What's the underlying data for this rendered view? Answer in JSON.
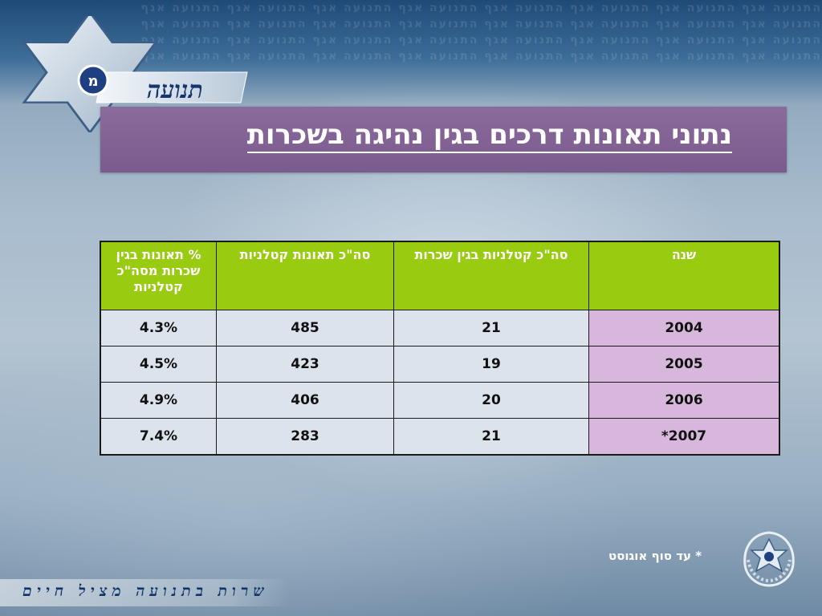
{
  "header": {
    "logo_text": "תנועה",
    "pattern_text": "התנועה אגף התנועה אגף התנועה אגף התנועה אגף התנועה אגף התנועה אגף התנועה אגף התנועה אגף"
  },
  "title": "נתוני תאונות דרכים בגין נהיגה בשכרות",
  "table": {
    "headers": [
      "שנה",
      "סה\"כ קטלניות בגין שכרות",
      "סה\"כ תאונות קטלניות",
      "% תאונות בגין שכרות מסה\"כ קטלניות"
    ],
    "rows": [
      [
        "2004",
        "21",
        "485",
        "4.3%"
      ],
      [
        "2005",
        "19",
        "423",
        "4.5%"
      ],
      [
        "2006",
        "20",
        "406",
        "4.9%"
      ],
      [
        "2007*",
        "21",
        "283",
        "7.4%"
      ]
    ]
  },
  "footnote": "* עד סוף אוגוסט",
  "footer": {
    "slogan": "שרות בתנועה מציל חיים",
    "emblem_icon": "police-emblem-icon"
  },
  "colors": {
    "title_bg": "#7b5b8d",
    "header_bg": "#99cc11",
    "year_cell_bg": "#d7b8dc",
    "cell_bg": "#dde3ec"
  }
}
